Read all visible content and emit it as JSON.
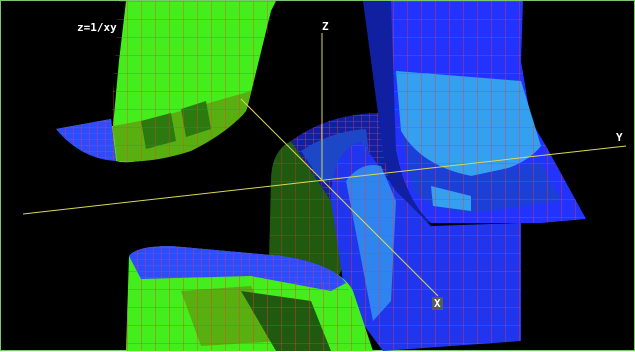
{
  "plot": {
    "equation": "z=1/xy",
    "axes": {
      "x": "X",
      "y": "Y",
      "z": "Z"
    }
  },
  "colors": {
    "background": "#000000",
    "frame": "#7cc66e",
    "axis": "#d8d858",
    "grid": "#ff2a2a",
    "green_light": "#44ee1c",
    "green_mid": "#58b010",
    "green_dark": "#205a10",
    "blue_bright": "#2233ff",
    "blue_mid": "#1a40d8",
    "blue_light": "#34a0f0",
    "blue_dark": "#1020a0"
  }
}
